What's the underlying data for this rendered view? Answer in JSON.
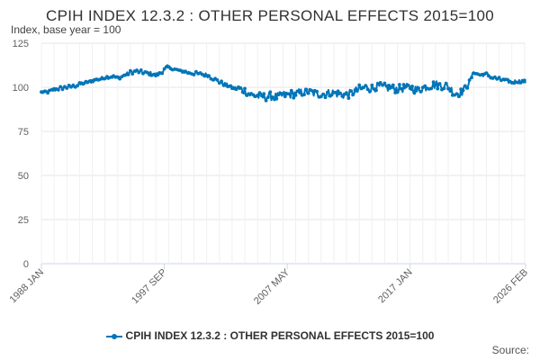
{
  "title": "CPIH INDEX 12.3.2 : OTHER PERSONAL EFFECTS 2015=100",
  "subtitle": "Index, base year = 100",
  "credits": "Source:",
  "colors": {
    "series": "#0075b8",
    "grid": "#e6e6e6",
    "axis": "#ccd6eb",
    "text": "#323132"
  },
  "chart_data": {
    "type": "line",
    "title": "CPIH INDEX 12.3.2 : OTHER PERSONAL EFFECTS 2015=100",
    "subtitle": "Index, base year = 100",
    "ylim": [
      0,
      125
    ],
    "yticks": [
      0,
      25,
      50,
      75,
      100,
      125
    ],
    "xlim": [
      "1988-01",
      "2026-02"
    ],
    "xtick_labels": [
      "1988 JAN",
      "1997 SEP",
      "2007 MAY",
      "2017 JAN",
      "2026 FEB"
    ],
    "xtick_dates": [
      "1988-01",
      "1997-09",
      "2007-05",
      "2017-01",
      "2026-02"
    ],
    "grid": true,
    "legend_position": "bottom-center",
    "series": [
      {
        "name": "CPIH INDEX 12.3.2 : OTHER PERSONAL EFFECTS 2015=100",
        "points": [
          [
            "1988-01",
            97
          ],
          [
            "1988-07",
            97.5
          ],
          [
            "1989-01",
            98.5
          ],
          [
            "1989-07",
            99.5
          ],
          [
            "1990-01",
            100
          ],
          [
            "1990-07",
            100.5
          ],
          [
            "1991-01",
            101.5
          ],
          [
            "1991-07",
            102.5
          ],
          [
            "1992-01",
            103.5
          ],
          [
            "1992-07",
            104.5
          ],
          [
            "1993-01",
            105.5
          ],
          [
            "1993-07",
            106
          ],
          [
            "1994-01",
            105.5
          ],
          [
            "1994-07",
            106.5
          ],
          [
            "1995-01",
            108.5
          ],
          [
            "1995-07",
            109
          ],
          [
            "1996-01",
            108.5
          ],
          [
            "1996-07",
            108
          ],
          [
            "1997-01",
            107
          ],
          [
            "1997-07",
            109
          ],
          [
            "1997-12",
            111.5
          ],
          [
            "1998-03",
            111
          ],
          [
            "1998-07",
            110
          ],
          [
            "1999-01",
            109
          ],
          [
            "1999-07",
            108.5
          ],
          [
            "2000-01",
            108
          ],
          [
            "2000-07",
            107.5
          ],
          [
            "2001-01",
            107
          ],
          [
            "2001-07",
            105
          ],
          [
            "2002-01",
            103
          ],
          [
            "2002-07",
            101.5
          ],
          [
            "2003-01",
            100
          ],
          [
            "2003-07",
            99
          ],
          [
            "2004-01",
            98
          ],
          [
            "2004-07",
            95.5
          ],
          [
            "2005-01",
            95
          ],
          [
            "2005-07",
            94.5
          ],
          [
            "2006-01",
            95
          ],
          [
            "2006-07",
            94.5
          ],
          [
            "2007-01",
            95.5
          ],
          [
            "2007-07",
            96
          ],
          [
            "2008-01",
            96.5
          ],
          [
            "2008-07",
            97
          ],
          [
            "2009-01",
            97.5
          ],
          [
            "2009-07",
            96.5
          ],
          [
            "2010-01",
            96
          ],
          [
            "2010-07",
            96.5
          ],
          [
            "2011-01",
            97
          ],
          [
            "2011-07",
            96
          ],
          [
            "2012-01",
            95.5
          ],
          [
            "2012-07",
            97
          ],
          [
            "2013-01",
            99
          ],
          [
            "2013-07",
            100
          ],
          [
            "2014-01",
            99.5
          ],
          [
            "2014-07",
            100.5
          ],
          [
            "2015-01",
            100
          ],
          [
            "2015-07",
            99.5
          ],
          [
            "2016-01",
            99
          ],
          [
            "2016-07",
            99.5
          ],
          [
            "2017-01",
            100
          ],
          [
            "2017-07",
            98.5
          ],
          [
            "2018-01",
            99.5
          ],
          [
            "2018-07",
            101
          ],
          [
            "2019-01",
            101.5
          ],
          [
            "2019-07",
            101
          ],
          [
            "2020-01",
            100.5
          ],
          [
            "2020-07",
            96.5
          ],
          [
            "2021-01",
            97
          ],
          [
            "2021-07",
            100.5
          ],
          [
            "2022-01",
            108.5
          ],
          [
            "2022-07",
            107
          ],
          [
            "2023-01",
            107.5
          ],
          [
            "2023-07",
            105.5
          ],
          [
            "2024-01",
            104.5
          ],
          [
            "2024-07",
            103.5
          ],
          [
            "2025-01",
            103
          ],
          [
            "2025-07",
            103.5
          ],
          [
            "2026-02",
            103
          ]
        ]
      }
    ]
  }
}
